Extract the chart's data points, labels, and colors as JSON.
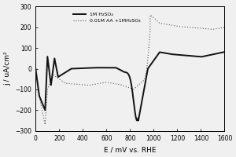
{
  "title": "",
  "xlabel": "E / mV vs. RHE",
  "ylabel": "j / uA/cm²",
  "xlim": [
    0,
    1600
  ],
  "ylim": [
    -300,
    300
  ],
  "xticks": [
    0,
    200,
    400,
    600,
    800,
    1000,
    1200,
    1400,
    1600
  ],
  "yticks": [
    -300,
    -200,
    -100,
    0,
    100,
    200,
    300
  ],
  "legend1": "1M H₂SO₄",
  "legend2": "0.01M AA +1MH₂SO₄",
  "background_color": "#f0f0f0",
  "line1_color": "#111111",
  "line2_color": "#555555"
}
